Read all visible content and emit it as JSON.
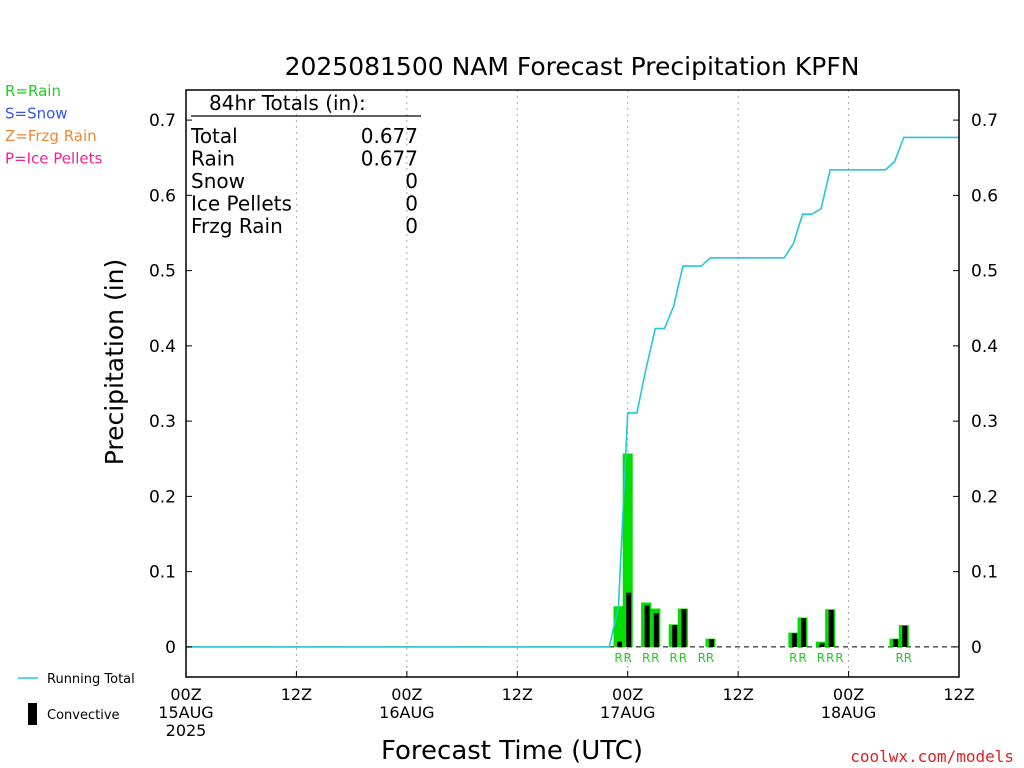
{
  "chart_data": {
    "type": "bar",
    "title": "2025081500 NAM Forecast Precipitation KPFN",
    "xlabel": "Forecast Time (UTC)",
    "ylabel": "Precipitation (in)",
    "xlim": [
      0,
      84
    ],
    "ylim": [
      -0.04,
      0.74
    ],
    "y_ticks": [
      0,
      0.1,
      0.2,
      0.3,
      0.4,
      0.5,
      0.6,
      0.7
    ],
    "y_tick_labels": [
      "0",
      "0.1",
      "0.2",
      "0.3",
      "0.4",
      "0.5",
      "0.6",
      "0.7"
    ],
    "x_ticks": [
      {
        "hour": 0,
        "lines": [
          "00Z",
          "15AUG",
          "2025"
        ]
      },
      {
        "hour": 12,
        "lines": [
          "12Z"
        ]
      },
      {
        "hour": 24,
        "lines": [
          "00Z",
          "16AUG"
        ]
      },
      {
        "hour": 36,
        "lines": [
          "12Z"
        ]
      },
      {
        "hour": 48,
        "lines": [
          "00Z",
          "17AUG"
        ]
      },
      {
        "hour": 60,
        "lines": [
          "12Z"
        ]
      },
      {
        "hour": 72,
        "lines": [
          "00Z",
          "18AUG"
        ]
      },
      {
        "hour": 84,
        "lines": [
          "12Z"
        ]
      }
    ],
    "x_gridlines": [
      12,
      24,
      36,
      48,
      60,
      72
    ],
    "precip_bars": [
      {
        "hour": 47,
        "total": 0.054,
        "convective": 0.007
      },
      {
        "hour": 48,
        "total": 0.257,
        "convective": 0.072
      },
      {
        "hour": 50,
        "total": 0.059,
        "convective": 0.055
      },
      {
        "hour": 51,
        "total": 0.051,
        "convective": 0.045
      },
      {
        "hour": 53,
        "total": 0.03,
        "convective": 0.029
      },
      {
        "hour": 54,
        "total": 0.051,
        "convective": 0.05
      },
      {
        "hour": 57,
        "total": 0.011,
        "convective": 0.01
      },
      {
        "hour": 66,
        "total": 0.019,
        "convective": 0.018
      },
      {
        "hour": 67,
        "total": 0.039,
        "convective": 0.038
      },
      {
        "hour": 69,
        "total": 0.007,
        "convective": 0.005
      },
      {
        "hour": 70,
        "total": 0.05,
        "convective": 0.049
      },
      {
        "hour": 77,
        "total": 0.011,
        "convective": 0.01
      },
      {
        "hour": 78,
        "total": 0.029,
        "convective": 0.028
      }
    ],
    "running_total": {
      "x": [
        0,
        46,
        47,
        48,
        49,
        50,
        51,
        52,
        53,
        54,
        55,
        56,
        57,
        58,
        59,
        60,
        61,
        62,
        63,
        64,
        65,
        66,
        67,
        68,
        69,
        70,
        71,
        72,
        73,
        74,
        75,
        76,
        77,
        78,
        84
      ],
      "y": [
        0,
        0,
        0.054,
        0.311,
        0.311,
        0.37,
        0.423,
        0.423,
        0.453,
        0.506,
        0.506,
        0.506,
        0.517,
        0.517,
        0.517,
        0.517,
        0.517,
        0.517,
        0.517,
        0.517,
        0.517,
        0.536,
        0.575,
        0.575,
        0.582,
        0.634,
        0.634,
        0.634,
        0.634,
        0.634,
        0.634,
        0.634,
        0.645,
        0.677,
        0.677
      ]
    },
    "ptype_labels": [
      {
        "hour": 47,
        "label": "R"
      },
      {
        "hour": 48,
        "label": "R"
      },
      {
        "hour": 50,
        "label": "R"
      },
      {
        "hour": 51,
        "label": "R"
      },
      {
        "hour": 53,
        "label": "R"
      },
      {
        "hour": 54,
        "label": "R"
      },
      {
        "hour": 56.5,
        "label": "RR"
      },
      {
        "hour": 66,
        "label": "R"
      },
      {
        "hour": 67,
        "label": "R"
      },
      {
        "hour": 69,
        "label": "R"
      },
      {
        "hour": 70,
        "label": "R"
      },
      {
        "hour": 71,
        "label": "R"
      },
      {
        "hour": 78,
        "label": "RR"
      }
    ],
    "totals_box": {
      "heading": "84hr Totals (in):",
      "rows": [
        {
          "label": "Total",
          "value": "0.677"
        },
        {
          "label": "Rain",
          "value": "0.677"
        },
        {
          "label": "Snow",
          "value": "0"
        },
        {
          "label": "Ice Pellets",
          "value": "0"
        },
        {
          "label": "Frzg Rain",
          "value": "0"
        }
      ]
    },
    "ptype_legend": [
      {
        "text": "R=Rain",
        "color": "#22cc22"
      },
      {
        "text": "S=Snow",
        "color": "#3355ee"
      },
      {
        "text": "Z=Frzg Rain",
        "color": "#ee8833"
      },
      {
        "text": "P=Ice Pellets",
        "color": "#ee2299"
      }
    ],
    "series_legend": [
      {
        "name": "Running Total",
        "color": "#22c8d8",
        "kind": "line"
      },
      {
        "name": "Convective",
        "color": "#000000",
        "kind": "bar"
      }
    ],
    "colors": {
      "total_bar": "#00dd00",
      "convective_bar": "#000000",
      "running_total": "#22c8d8",
      "grid": "#aaaaaa",
      "ptype_label": "#22cc22"
    },
    "credit": "coolwx.com/models",
    "credit_color": "#dd2222"
  }
}
